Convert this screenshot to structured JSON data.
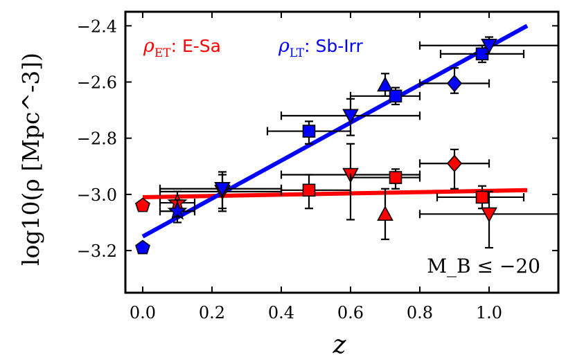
{
  "chart_data": {
    "type": "scatter",
    "xlabel": "z",
    "ylabel": "log10(ρ [Mpc^-3])",
    "xlim": [
      -0.05,
      1.2
    ],
    "ylim": [
      -3.35,
      -2.35
    ],
    "x_ticks": [
      0.0,
      0.2,
      0.4,
      0.6,
      0.8,
      1.0
    ],
    "x_tick_labels": [
      "0.0",
      "0.2",
      "0.4",
      "0.6",
      "0.8",
      "1.0"
    ],
    "y_ticks": [
      -2.4,
      -2.6,
      -2.8,
      -3.0,
      -3.2
    ],
    "y_tick_labels": [
      "−2.4",
      "−2.6",
      "−2.8",
      "−3.0",
      "−3.2"
    ],
    "annotation": "M_B ≤ −20",
    "legend": [
      {
        "series": "early",
        "symbol": "ρ",
        "subscript": "ET",
        "suffix": ": E-Sa",
        "color": "#ff0000"
      },
      {
        "series": "late",
        "symbol": "ρ",
        "subscript": "LT",
        "suffix": ": Sb-Irr",
        "color": "#0000ff"
      }
    ],
    "fits": [
      {
        "name": "early",
        "color": "#ff0000",
        "x": [
          0.0,
          1.11
        ],
        "y": [
          -3.01,
          -2.985
        ]
      },
      {
        "name": "late",
        "color": "#0000ff",
        "x": [
          0.0,
          1.11
        ],
        "y": [
          -3.15,
          -2.4
        ]
      }
    ],
    "series": [
      {
        "name": "early",
        "color": "#ff0000",
        "points": [
          {
            "marker": "pentagon",
            "x": 0.0,
            "y": -3.04,
            "xlo": 0.0,
            "xhi": 0.0,
            "ylo": -3.04,
            "yhi": -3.04
          },
          {
            "marker": "star",
            "x": 0.1,
            "y": -3.03,
            "xlo": 0.05,
            "xhi": 0.15,
            "ylo": -3.08,
            "yhi": -2.99
          },
          {
            "marker": "triangle-down",
            "x": 0.23,
            "y": -2.99,
            "xlo": 0.05,
            "xhi": 0.4,
            "ylo": -3.06,
            "yhi": -2.92
          },
          {
            "marker": "square",
            "x": 0.48,
            "y": -2.985,
            "xlo": 0.4,
            "xhi": 0.6,
            "ylo": -3.05,
            "yhi": -2.93
          },
          {
            "marker": "triangle-down",
            "x": 0.6,
            "y": -2.93,
            "xlo": 0.4,
            "xhi": 0.8,
            "ylo": -3.09,
            "yhi": -2.82
          },
          {
            "marker": "triangle-up",
            "x": 0.7,
            "y": -3.07,
            "xlo": 0.7,
            "xhi": 0.7,
            "ylo": -3.16,
            "yhi": -2.98
          },
          {
            "marker": "square",
            "x": 0.73,
            "y": -2.94,
            "xlo": 0.6,
            "xhi": 0.8,
            "ylo": -2.98,
            "yhi": -2.91
          },
          {
            "marker": "diamond",
            "x": 0.9,
            "y": -2.89,
            "xlo": 0.8,
            "xhi": 1.0,
            "ylo": -2.98,
            "yhi": -2.84
          },
          {
            "marker": "square",
            "x": 0.98,
            "y": -3.01,
            "xlo": 0.85,
            "xhi": 1.1,
            "ylo": -3.05,
            "yhi": -2.97
          },
          {
            "marker": "triangle-down",
            "x": 1.0,
            "y": -3.07,
            "xlo": 0.8,
            "xhi": 1.2,
            "ylo": -3.19,
            "yhi": -2.99
          }
        ]
      },
      {
        "name": "late",
        "color": "#0000ff",
        "points": [
          {
            "marker": "pentagon",
            "x": 0.0,
            "y": -3.19,
            "xlo": 0.0,
            "xhi": 0.0,
            "ylo": -3.19,
            "yhi": -3.19
          },
          {
            "marker": "star",
            "x": 0.1,
            "y": -3.06,
            "xlo": 0.05,
            "xhi": 0.15,
            "ylo": -3.1,
            "yhi": -3.02
          },
          {
            "marker": "triangle-down",
            "x": 0.23,
            "y": -2.98,
            "xlo": 0.05,
            "xhi": 0.4,
            "ylo": -3.05,
            "yhi": -2.93
          },
          {
            "marker": "square",
            "x": 0.48,
            "y": -2.775,
            "xlo": 0.36,
            "xhi": 0.6,
            "ylo": -2.82,
            "yhi": -2.74
          },
          {
            "marker": "triangle-down",
            "x": 0.6,
            "y": -2.72,
            "xlo": 0.4,
            "xhi": 0.8,
            "ylo": -2.79,
            "yhi": -2.66
          },
          {
            "marker": "triangle-up",
            "x": 0.7,
            "y": -2.61,
            "xlo": 0.7,
            "xhi": 0.7,
            "ylo": -2.65,
            "yhi": -2.57
          },
          {
            "marker": "square",
            "x": 0.73,
            "y": -2.65,
            "xlo": 0.6,
            "xhi": 0.8,
            "ylo": -2.68,
            "yhi": -2.62
          },
          {
            "marker": "diamond",
            "x": 0.9,
            "y": -2.605,
            "xlo": 0.8,
            "xhi": 1.0,
            "ylo": -2.64,
            "yhi": -2.55
          },
          {
            "marker": "square",
            "x": 0.98,
            "y": -2.5,
            "xlo": 0.86,
            "xhi": 1.1,
            "ylo": -2.53,
            "yhi": -2.47
          },
          {
            "marker": "triangle-down",
            "x": 1.0,
            "y": -2.47,
            "xlo": 0.8,
            "xhi": 1.2,
            "ylo": -2.5,
            "yhi": -2.44
          }
        ]
      }
    ]
  }
}
